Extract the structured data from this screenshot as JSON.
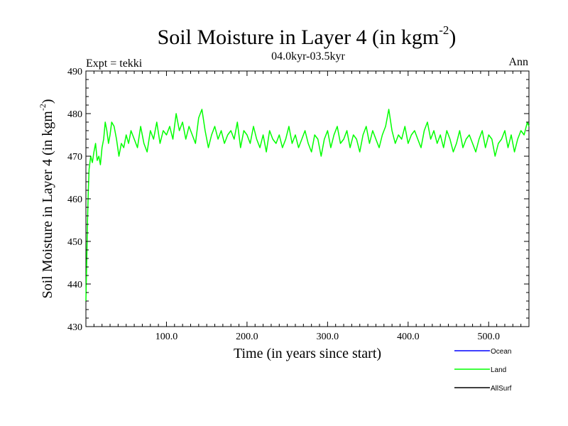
{
  "header": {
    "title": "Soil Moisture in Layer 4 (in kgm",
    "title_sup": "-2",
    "title_close": ")",
    "expt_label": "Expt = tekki",
    "period_label": "04.0kyr-03.5kyr",
    "season_label": "Ann"
  },
  "chart_data": {
    "type": "line",
    "title": "Soil Moisture in Layer 4 (in kgm-2)",
    "xlabel": "Time (in years since start)",
    "ylabel": "Soil Moisture in Layer 4 (in kgm-2)",
    "ylabel_main": "Soil Moisture in Layer 4 (in kgm",
    "ylabel_sup": "-2",
    "ylabel_close": ")",
    "xlim": [
      0,
      550
    ],
    "ylim": [
      430,
      490
    ],
    "x_ticks": [
      100,
      200,
      300,
      400,
      500
    ],
    "x_tick_labels": [
      "100.0",
      "200.0",
      "300.0",
      "400.0",
      "500.0"
    ],
    "y_ticks": [
      430,
      440,
      450,
      460,
      470,
      480,
      490
    ],
    "y_tick_labels": [
      "430",
      "440",
      "450",
      "460",
      "470",
      "480",
      "490"
    ],
    "legend_position": "bottom-right",
    "series": [
      {
        "name": "Land",
        "color": "#00ff00",
        "x": [
          0,
          1,
          2,
          3,
          4,
          6,
          8,
          10,
          12,
          14,
          16,
          18,
          20,
          22,
          24,
          26,
          28,
          30,
          32,
          35,
          38,
          41,
          44,
          47,
          50,
          53,
          56,
          60,
          64,
          68,
          72,
          76,
          80,
          84,
          88,
          92,
          96,
          100,
          104,
          108,
          112,
          116,
          120,
          124,
          128,
          132,
          136,
          140,
          144,
          148,
          152,
          156,
          160,
          164,
          168,
          172,
          176,
          180,
          184,
          188,
          192,
          196,
          200,
          204,
          208,
          212,
          216,
          220,
          224,
          228,
          232,
          236,
          240,
          244,
          248,
          252,
          256,
          260,
          264,
          268,
          272,
          276,
          280,
          284,
          288,
          292,
          296,
          300,
          304,
          308,
          312,
          316,
          320,
          324,
          328,
          332,
          336,
          340,
          344,
          348,
          352,
          356,
          360,
          364,
          368,
          372,
          376,
          380,
          384,
          388,
          392,
          396,
          400,
          404,
          408,
          412,
          416,
          420,
          424,
          428,
          432,
          436,
          440,
          444,
          448,
          452,
          456,
          460,
          464,
          468,
          472,
          476,
          480,
          484,
          488,
          492,
          496,
          500,
          504,
          508,
          512,
          516,
          520,
          524,
          528,
          532,
          536,
          540,
          544,
          548,
          550
        ],
        "values": [
          436,
          445,
          455,
          462,
          467,
          470,
          468.5,
          471,
          473,
          469,
          470,
          468,
          472,
          474,
          478,
          476,
          473,
          475,
          478,
          477,
          474,
          470,
          473,
          472,
          475,
          473,
          476,
          474,
          472,
          477,
          473,
          471,
          476,
          474,
          478,
          473,
          476,
          475,
          477,
          474,
          480,
          476,
          478,
          474,
          477,
          475,
          473,
          479,
          481,
          476,
          472,
          475,
          477,
          474,
          476,
          473,
          475,
          476,
          474,
          478,
          472,
          476,
          475,
          473,
          477,
          474,
          472,
          475,
          471,
          476,
          474,
          473,
          475,
          472,
          474,
          477,
          473,
          475,
          472,
          474,
          476,
          473,
          471,
          475,
          474,
          470,
          474,
          476,
          472,
          475,
          477,
          473,
          474,
          476,
          472,
          475,
          474,
          471,
          475,
          477,
          473,
          476,
          474,
          472,
          475,
          477,
          481,
          476,
          473,
          475,
          474,
          477,
          473,
          475,
          476,
          474,
          472,
          476,
          478,
          474,
          476,
          473,
          475,
          472,
          476,
          474,
          471,
          473,
          476,
          472,
          474,
          475,
          473,
          471,
          474,
          476,
          472,
          475,
          474,
          470,
          473,
          474,
          476,
          472,
          475,
          471,
          474,
          476,
          475,
          478,
          477
        ]
      }
    ],
    "legend": [
      {
        "name": "Ocean",
        "color": "#0000ff"
      },
      {
        "name": "Land",
        "color": "#00ff00"
      },
      {
        "name": "AllSurf",
        "color": "#000000"
      }
    ]
  }
}
